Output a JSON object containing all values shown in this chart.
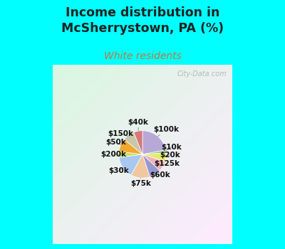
{
  "title": "Income distribution in\nMcSherrystown, PA (%)",
  "subtitle": "White residents",
  "bg_color": "#00FFFF",
  "chart_bg": "#e8f5ee",
  "labels": [
    "$100k",
    "$10k",
    "$20k",
    "$125k",
    "$60k",
    "$75k",
    "$30k",
    "$200k",
    "$50k",
    "$150k",
    "$40k"
  ],
  "sizes": [
    22,
    2,
    6,
    7,
    8,
    13,
    15,
    4,
    9,
    8,
    6
  ],
  "colors": [
    "#b8a8d8",
    "#90c890",
    "#e8e870",
    "#f0b0bc",
    "#9898d0",
    "#f0c8a0",
    "#a8c8f0",
    "#c8e060",
    "#f0a830",
    "#c8c8a8",
    "#d87878"
  ],
  "watermark": "City-Data.com",
  "title_color": "#222222",
  "subtitle_color": "#c07840"
}
